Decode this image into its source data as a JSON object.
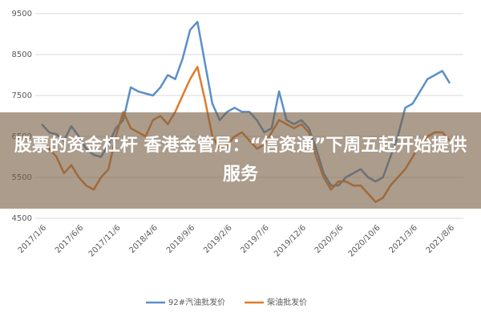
{
  "chart_data": {
    "type": "line",
    "categories": [
      "2017/1/6",
      null,
      null,
      null,
      null,
      "2017/6/6",
      null,
      null,
      null,
      null,
      "2017/11/6",
      null,
      null,
      null,
      null,
      "2018/4/6",
      null,
      null,
      null,
      null,
      "2018/9/6",
      null,
      null,
      null,
      null,
      "2019/2/6",
      null,
      null,
      null,
      null,
      "2019/7/6",
      null,
      null,
      null,
      null,
      "2019/12/6",
      null,
      null,
      null,
      null,
      "2020/5/6",
      null,
      null,
      null,
      null,
      "2020/10/6",
      null,
      null,
      null,
      null,
      "2021/3/6",
      null,
      null,
      null,
      null,
      "2021/8/6"
    ],
    "series": [
      {
        "name": "92#汽油批发价",
        "color": "#5b8fc9",
        "values": [
          6800,
          6600,
          6550,
          6400,
          6750,
          6500,
          6200,
          6050,
          6000,
          6300,
          6700,
          6900,
          7700,
          7600,
          7550,
          7500,
          7700,
          8000,
          7900,
          8400,
          9100,
          9300,
          8300,
          7300,
          6900,
          7100,
          7200,
          7100,
          7100,
          6900,
          6600,
          6700,
          7600,
          6900,
          6800,
          6900,
          6700,
          6200,
          5600,
          5300,
          5300,
          5500,
          5600,
          5700,
          5500,
          5400,
          5500,
          6000,
          6500,
          7200,
          7300,
          7600,
          7900,
          8000,
          8100,
          7800
        ]
      },
      {
        "name": "柴油批发价",
        "color": "#e07b2b",
        "values": [
          6400,
          6200,
          6000,
          5600,
          5800,
          5500,
          5300,
          5200,
          5500,
          5700,
          6500,
          7100,
          6700,
          6600,
          6500,
          6900,
          7000,
          6800,
          7100,
          7500,
          7900,
          8200,
          7400,
          6500,
          6200,
          6300,
          6500,
          6600,
          6400,
          6200,
          6300,
          6600,
          6900,
          6800,
          6700,
          6800,
          6600,
          6000,
          5500,
          5200,
          5400,
          5400,
          5300,
          5300,
          5100,
          4900,
          5000,
          5300,
          5500,
          5700,
          6000,
          6300,
          6500,
          6600,
          6600,
          6400
        ]
      }
    ],
    "ylim": [
      4500,
      9500
    ],
    "yticks": [
      4500,
      5500,
      6500,
      7500,
      8500,
      9500
    ],
    "grid": true,
    "legend": "bottom",
    "annotations": [
      "股票的资金杠杆 香港金管局：“信资通”下周五起开始提供服务"
    ]
  }
}
